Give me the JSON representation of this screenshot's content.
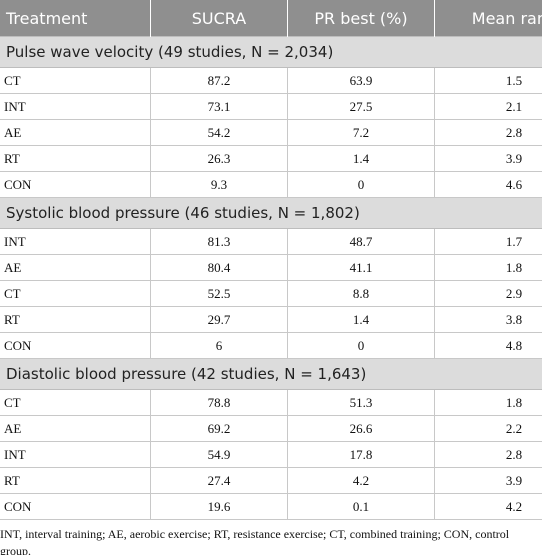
{
  "table": {
    "columns": [
      "Treatment",
      "SUCRA",
      "PR best (%)",
      "Mean rank"
    ],
    "groups": [
      {
        "title": "Pulse wave velocity (49 studies, N = 2,034)",
        "rows": [
          [
            "CT",
            87.2,
            63.9,
            1.5
          ],
          [
            "INT",
            73.1,
            27.5,
            2.1
          ],
          [
            "AE",
            54.2,
            7.2,
            2.8
          ],
          [
            "RT",
            26.3,
            1.4,
            3.9
          ],
          [
            "CON",
            9.3,
            0,
            4.6
          ]
        ]
      },
      {
        "title": "Systolic blood pressure (46 studies, N = 1,802)",
        "rows": [
          [
            "INT",
            81.3,
            48.7,
            1.7
          ],
          [
            "AE",
            80.4,
            41.1,
            1.8
          ],
          [
            "CT",
            52.5,
            8.8,
            2.9
          ],
          [
            "RT",
            29.7,
            1.4,
            3.8
          ],
          [
            "CON",
            6,
            0,
            4.8
          ]
        ]
      },
      {
        "title": "Diastolic blood pressure (42 studies, N = 1,643)",
        "rows": [
          [
            "CT",
            78.8,
            51.3,
            1.8
          ],
          [
            "AE",
            69.2,
            26.6,
            2.2
          ],
          [
            "INT",
            54.9,
            17.8,
            2.8
          ],
          [
            "RT",
            27.4,
            4.2,
            3.9
          ],
          [
            "CON",
            19.6,
            0.1,
            4.2
          ]
        ]
      }
    ],
    "footnote": "INT, interval training; AE, aerobic exercise; RT, resistance exercise; CT, combined training; CON, control group."
  }
}
